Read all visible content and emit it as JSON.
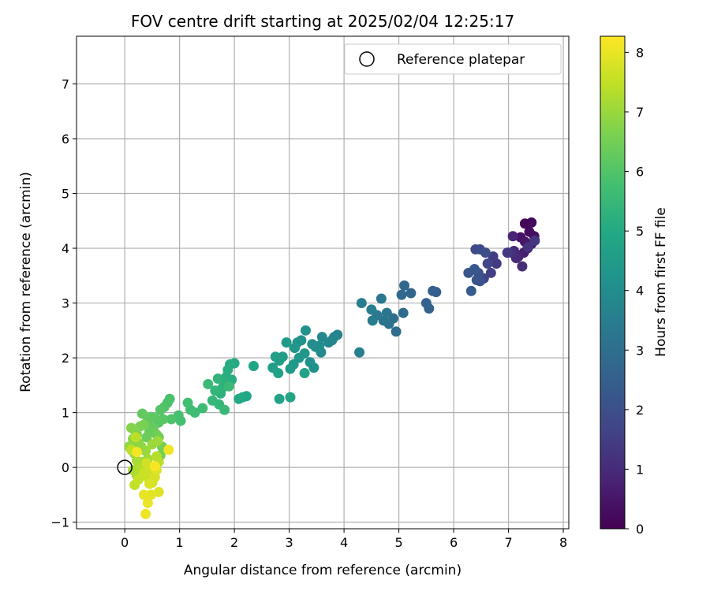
{
  "chart_data": {
    "type": "scatter",
    "title": "FOV centre drift starting at 2025/02/04 12:25:17",
    "xlabel": "Angular distance from reference (arcmin)",
    "ylabel": "Rotation from reference (arcmin)",
    "xlim": [
      -0.88,
      8.1
    ],
    "ylim": [
      -1.12,
      7.87
    ],
    "xticks": [
      0,
      1,
      2,
      3,
      4,
      5,
      6,
      7,
      8
    ],
    "yticks": [
      -1,
      0,
      1,
      2,
      3,
      4,
      5,
      6,
      7
    ],
    "grid": true,
    "legend": {
      "label": "Reference platepar",
      "position": "upper right"
    },
    "reference": {
      "x": 0,
      "y": 0
    },
    "colorbar": {
      "label": "Hours from first FF file",
      "min": 0,
      "max": 8.27,
      "ticks": [
        0,
        1,
        2,
        3,
        4,
        5,
        6,
        7,
        8
      ],
      "colormap": "viridis"
    },
    "points": [
      [
        7.3,
        4.45,
        0.12
      ],
      [
        7.42,
        4.47,
        0.18
      ],
      [
        7.38,
        4.3,
        0.25
      ],
      [
        7.47,
        4.22,
        0.32
      ],
      [
        7.22,
        4.2,
        0.4
      ],
      [
        7.3,
        4.12,
        0.48
      ],
      [
        7.42,
        4.08,
        0.55
      ],
      [
        7.35,
        4.0,
        0.62
      ],
      [
        7.28,
        3.92,
        0.7
      ],
      [
        7.18,
        3.85,
        0.78
      ],
      [
        7.08,
        4.22,
        0.85
      ],
      [
        7.1,
        3.95,
        0.92
      ],
      [
        7.14,
        3.82,
        1.0
      ],
      [
        7.25,
        3.67,
        1.08
      ],
      [
        7.05,
        3.92,
        1.15
      ],
      [
        7.36,
        4.02,
        1.22
      ],
      [
        7.48,
        4.14,
        1.28
      ],
      [
        6.98,
        3.92,
        1.35
      ],
      [
        6.78,
        3.72,
        1.42
      ],
      [
        6.72,
        3.85,
        1.5
      ],
      [
        6.68,
        3.55,
        1.58
      ],
      [
        6.55,
        3.45,
        1.65
      ],
      [
        6.62,
        3.72,
        1.72
      ],
      [
        6.48,
        3.98,
        1.8
      ],
      [
        6.4,
        3.98,
        1.88
      ],
      [
        6.58,
        3.92,
        1.95
      ],
      [
        6.45,
        3.55,
        2.02
      ],
      [
        6.42,
        3.42,
        2.08
      ],
      [
        6.48,
        3.4,
        2.15
      ],
      [
        6.27,
        3.55,
        2.22
      ],
      [
        6.38,
        3.62,
        2.28
      ],
      [
        6.32,
        3.22,
        2.35
      ],
      [
        5.68,
        3.2,
        2.42
      ],
      [
        5.62,
        3.22,
        2.48
      ],
      [
        5.5,
        3.0,
        2.55
      ],
      [
        5.55,
        2.9,
        2.62
      ],
      [
        5.22,
        3.18,
        2.68
      ],
      [
        5.1,
        3.32,
        2.75
      ],
      [
        5.05,
        3.15,
        2.82
      ],
      [
        5.08,
        2.82,
        2.88
      ],
      [
        4.95,
        2.48,
        2.95
      ],
      [
        4.9,
        2.72,
        3.02
      ],
      [
        4.82,
        2.62,
        3.08
      ],
      [
        4.72,
        2.68,
        3.15
      ],
      [
        4.78,
        2.82,
        3.22
      ],
      [
        4.68,
        3.08,
        3.28
      ],
      [
        4.6,
        2.78,
        3.35
      ],
      [
        4.52,
        2.68,
        3.42
      ],
      [
        4.5,
        2.88,
        3.48
      ],
      [
        4.32,
        3.0,
        3.55
      ],
      [
        4.28,
        2.1,
        3.62
      ],
      [
        3.88,
        2.42,
        3.68
      ],
      [
        3.82,
        2.38,
        3.72
      ],
      [
        3.78,
        2.32,
        3.78
      ],
      [
        3.72,
        2.28,
        3.82
      ],
      [
        3.6,
        2.38,
        3.88
      ],
      [
        3.58,
        2.1,
        3.92
      ],
      [
        3.55,
        2.22,
        3.98
      ],
      [
        3.48,
        2.2,
        4.02
      ],
      [
        3.42,
        2.25,
        4.08
      ],
      [
        3.38,
        1.92,
        4.12
      ],
      [
        3.45,
        1.82,
        4.15
      ],
      [
        3.3,
        2.5,
        4.18
      ],
      [
        3.22,
        2.32,
        4.22
      ],
      [
        3.15,
        2.28,
        4.26
      ],
      [
        3.1,
        2.18,
        4.3
      ],
      [
        3.28,
        2.08,
        4.34
      ],
      [
        3.18,
        2.0,
        4.38
      ],
      [
        3.08,
        1.88,
        4.42
      ],
      [
        3.02,
        1.8,
        4.46
      ],
      [
        2.95,
        2.28,
        4.5
      ],
      [
        2.88,
        2.02,
        4.54
      ],
      [
        2.82,
        1.95,
        4.58
      ],
      [
        2.75,
        2.02,
        4.62
      ],
      [
        2.7,
        1.82,
        4.66
      ],
      [
        2.8,
        1.72,
        4.7
      ],
      [
        3.28,
        1.72,
        4.74
      ],
      [
        2.82,
        1.25,
        4.78
      ],
      [
        3.02,
        1.28,
        4.82
      ],
      [
        2.35,
        1.85,
        4.86
      ],
      [
        2.22,
        1.3,
        4.9
      ],
      [
        2.15,
        1.28,
        4.94
      ],
      [
        2.08,
        1.25,
        4.98
      ],
      [
        2.0,
        1.9,
        5.02
      ],
      [
        1.92,
        1.88,
        5.06
      ],
      [
        1.95,
        1.6,
        5.1
      ],
      [
        1.88,
        1.78,
        5.14
      ],
      [
        1.85,
        1.65,
        5.18
      ],
      [
        1.82,
        1.55,
        5.22
      ],
      [
        1.78,
        1.45,
        5.26
      ],
      [
        1.75,
        1.35,
        5.3
      ],
      [
        1.7,
        1.62,
        5.34
      ],
      [
        1.65,
        1.4,
        5.38
      ],
      [
        1.72,
        1.15,
        5.42
      ],
      [
        1.6,
        1.22,
        5.46
      ],
      [
        1.82,
        1.05,
        5.5
      ],
      [
        1.9,
        1.48,
        5.54
      ],
      [
        1.52,
        1.52,
        5.58
      ],
      [
        1.42,
        1.08,
        5.62
      ],
      [
        1.28,
        1.0,
        5.66
      ],
      [
        1.2,
        1.05,
        5.7
      ],
      [
        1.15,
        1.18,
        5.74
      ],
      [
        1.02,
        0.85,
        5.78
      ],
      [
        0.98,
        0.95,
        5.82
      ],
      [
        0.82,
        1.25,
        5.86
      ],
      [
        0.78,
        1.18,
        5.9
      ],
      [
        0.85,
        0.88,
        5.94
      ],
      [
        0.72,
        1.1,
        5.98
      ],
      [
        0.65,
        1.05,
        6.02
      ],
      [
        0.7,
        0.88,
        6.06
      ],
      [
        0.62,
        0.82,
        6.1
      ],
      [
        0.55,
        0.9,
        6.14
      ],
      [
        0.48,
        0.92,
        6.18
      ],
      [
        0.42,
        0.85,
        6.22
      ],
      [
        0.32,
        0.98,
        6.26
      ],
      [
        0.52,
        0.72,
        6.3
      ],
      [
        0.45,
        0.65,
        6.34
      ],
      [
        0.4,
        0.55,
        6.38
      ],
      [
        0.58,
        0.6,
        6.42
      ],
      [
        0.62,
        0.55,
        6.46
      ],
      [
        0.68,
        0.38,
        6.5
      ],
      [
        0.65,
        0.22,
        6.54
      ],
      [
        0.35,
        0.78,
        6.58
      ],
      [
        0.28,
        0.75,
        6.62
      ],
      [
        0.22,
        0.6,
        6.66
      ],
      [
        0.18,
        0.68,
        6.7
      ],
      [
        0.12,
        0.72,
        6.74
      ],
      [
        0.15,
        0.52,
        6.78
      ],
      [
        0.25,
        0.45,
        6.82
      ],
      [
        0.3,
        0.38,
        6.86
      ],
      [
        0.08,
        0.38,
        6.9
      ],
      [
        0.18,
        0.25,
        6.94
      ],
      [
        0.38,
        0.3,
        6.98
      ],
      [
        0.5,
        0.42,
        7.02
      ],
      [
        0.6,
        0.48,
        7.06
      ],
      [
        0.42,
        0.15,
        7.1
      ],
      [
        0.32,
        0.1,
        7.14
      ],
      [
        0.22,
        0.12,
        7.18
      ],
      [
        0.15,
        -0.05,
        7.22
      ],
      [
        0.22,
        -0.15,
        7.26
      ],
      [
        0.28,
        -0.02,
        7.3
      ],
      [
        0.58,
        0.2,
        7.34
      ],
      [
        0.62,
        0.1,
        7.38
      ],
      [
        0.2,
        0.55,
        7.42
      ],
      [
        0.12,
        0.32,
        7.46
      ],
      [
        0.18,
        -0.32,
        7.5
      ],
      [
        0.25,
        -0.22,
        7.54
      ],
      [
        0.35,
        -0.1,
        7.58
      ],
      [
        0.42,
        -0.18,
        7.62
      ],
      [
        0.48,
        -0.05,
        7.66
      ],
      [
        0.4,
        0.08,
        7.7
      ],
      [
        0.5,
        -0.28,
        7.74
      ],
      [
        0.55,
        -0.18,
        7.78
      ],
      [
        0.45,
        -0.3,
        7.82
      ],
      [
        0.58,
        -0.05,
        7.86
      ],
      [
        0.62,
        -0.45,
        7.9
      ],
      [
        0.48,
        -0.5,
        7.94
      ],
      [
        0.35,
        -0.5,
        7.98
      ],
      [
        0.42,
        -0.65,
        8.02
      ],
      [
        0.38,
        -0.85,
        8.06
      ],
      [
        0.8,
        0.32,
        8.1
      ],
      [
        0.22,
        0.28,
        8.14
      ],
      [
        0.55,
        0.02,
        8.2
      ]
    ]
  }
}
